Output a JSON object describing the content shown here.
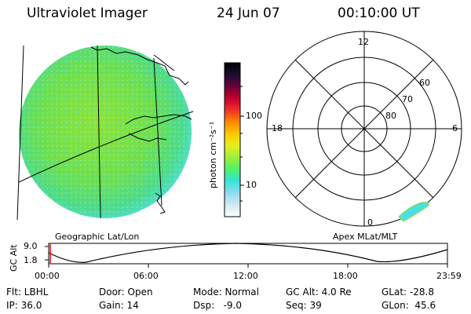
{
  "header": {
    "instrument": "Ultraviolet Imager",
    "date": "24 Jun 07",
    "time": "00:10:00 UT"
  },
  "geo_panel": {
    "label": "Geographic Lat/Lon"
  },
  "colorbar": {
    "unit_label": "photon cm⁻²s⁻¹",
    "ticks": [
      "100",
      "10"
    ],
    "scale": "log",
    "colors": [
      "#ffffff",
      "#cfe8f0",
      "#8fdcef",
      "#36e4da",
      "#4ff06a",
      "#9cf03a",
      "#e6ee20",
      "#ffc800",
      "#ff8800",
      "#f0302a",
      "#c2002a",
      "#6a003a",
      "#1a1030",
      "#000000"
    ]
  },
  "polar_panel": {
    "label": "Apex MLat/MLT",
    "mlt_labels": {
      "top": "12",
      "left": "18",
      "right": "6",
      "bottom": "0"
    },
    "lat_labels": [
      "60",
      "70",
      "80"
    ]
  },
  "gc_plot": {
    "ylabel": "GC Alt",
    "yticks": [
      "9.0",
      "1.8"
    ],
    "xticks": [
      "00:00",
      "06:00",
      "12:00",
      "18:00",
      "23:59"
    ]
  },
  "info": {
    "flt": "Flt: LBHL",
    "ip": "IP: 36.0",
    "door": "Door: Open",
    "gain": "Gain: 14",
    "mode": "Mode: Normal",
    "dsp": "Dsp:   -9.0",
    "gc_alt": "GC Alt: 4.0 Re",
    "seq": "Seq: 39",
    "glat": "GLat: -28.8",
    "glon": "GLon:  45.6"
  },
  "colors": {
    "cyan_edge": "#4ddfe0",
    "green_core": "#7ee23a",
    "marker": "#ff0000"
  }
}
